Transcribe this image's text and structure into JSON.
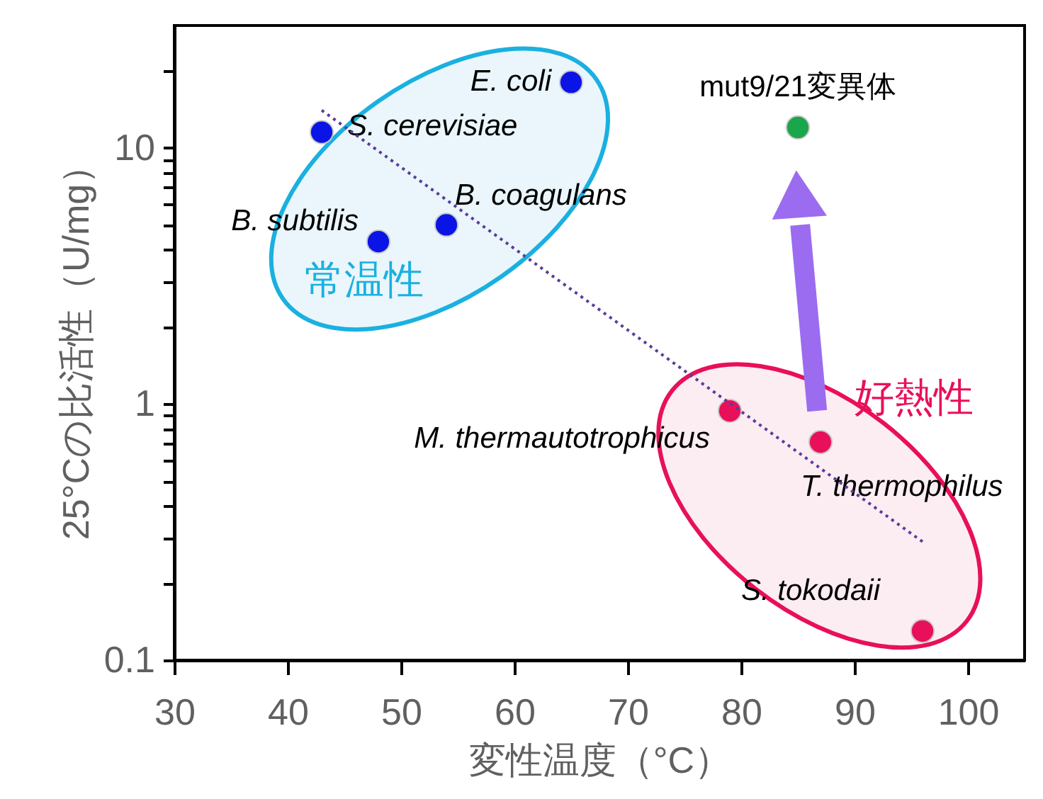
{
  "chart_data": {
    "type": "scatter",
    "xlabel": "変性温度（°C）",
    "ylabel": "25°Cの比活性（U/mg）",
    "log": "y",
    "grid": false,
    "marker": "circle",
    "xlim": [
      30,
      105
    ],
    "xticks": [
      30,
      40,
      50,
      60,
      70,
      80,
      90,
      100
    ],
    "ylim": [
      0.1,
      30
    ],
    "yticks": [
      0.1,
      {
        "value": 0.2,
        "label": null
      },
      {
        "value": 0.3,
        "label": null
      },
      {
        "value": 0.4,
        "label": null
      },
      {
        "value": 0.5,
        "label": null
      },
      {
        "value": 0.6,
        "label": null
      },
      {
        "value": 0.7,
        "label": null
      },
      {
        "value": 0.8,
        "label": null
      },
      {
        "value": 0.9,
        "label": null
      },
      1,
      {
        "value": 2,
        "label": null
      },
      {
        "value": 3,
        "label": null
      },
      {
        "value": 4,
        "label": null
      },
      {
        "value": 5,
        "label": null
      },
      {
        "value": 6,
        "label": null
      },
      {
        "value": 7,
        "label": null
      },
      {
        "value": 8,
        "label": null
      },
      {
        "value": 9,
        "label": null
      },
      10,
      {
        "value": 20,
        "label": null
      }
    ],
    "annotations": [
      "常温性",
      "好熱性"
    ],
    "series": [
      {
        "name": "E. coli",
        "color": "#0a14e6",
        "x": [
          65
        ],
        "values": [
          18
        ]
      },
      {
        "name": "S. cerevisiae",
        "color": "#0a14e6",
        "x": [
          43
        ],
        "values": [
          11.5
        ]
      },
      {
        "name": "B. subtilis",
        "color": "#0a14e6",
        "x": [
          48
        ],
        "values": [
          4.3
        ]
      },
      {
        "name": "B. coagulans",
        "color": "#0a14e6",
        "x": [
          54
        ],
        "values": [
          5.0
        ]
      },
      {
        "name": "mut9/21変異体",
        "color": "#1aa64a",
        "x": [
          85
        ],
        "values": [
          12
        ]
      },
      {
        "name": "M. thermautotrophicus",
        "color": "#e8105a",
        "x": [
          79
        ],
        "values": [
          0.94
        ]
      },
      {
        "name": "T. thermophilus",
        "color": "#e8105a",
        "x": [
          87
        ],
        "values": [
          0.71
        ]
      },
      {
        "name": "S. tokodaii",
        "color": "#e8105a",
        "x": [
          96
        ],
        "values": [
          0.13
        ]
      },
      {
        "type": "line",
        "color": "#5a3c9a",
        "line_style": "dotted",
        "marker": "none",
        "x": [
          43,
          96
        ],
        "values": [
          14,
          0.29
        ]
      }
    ]
  }
}
